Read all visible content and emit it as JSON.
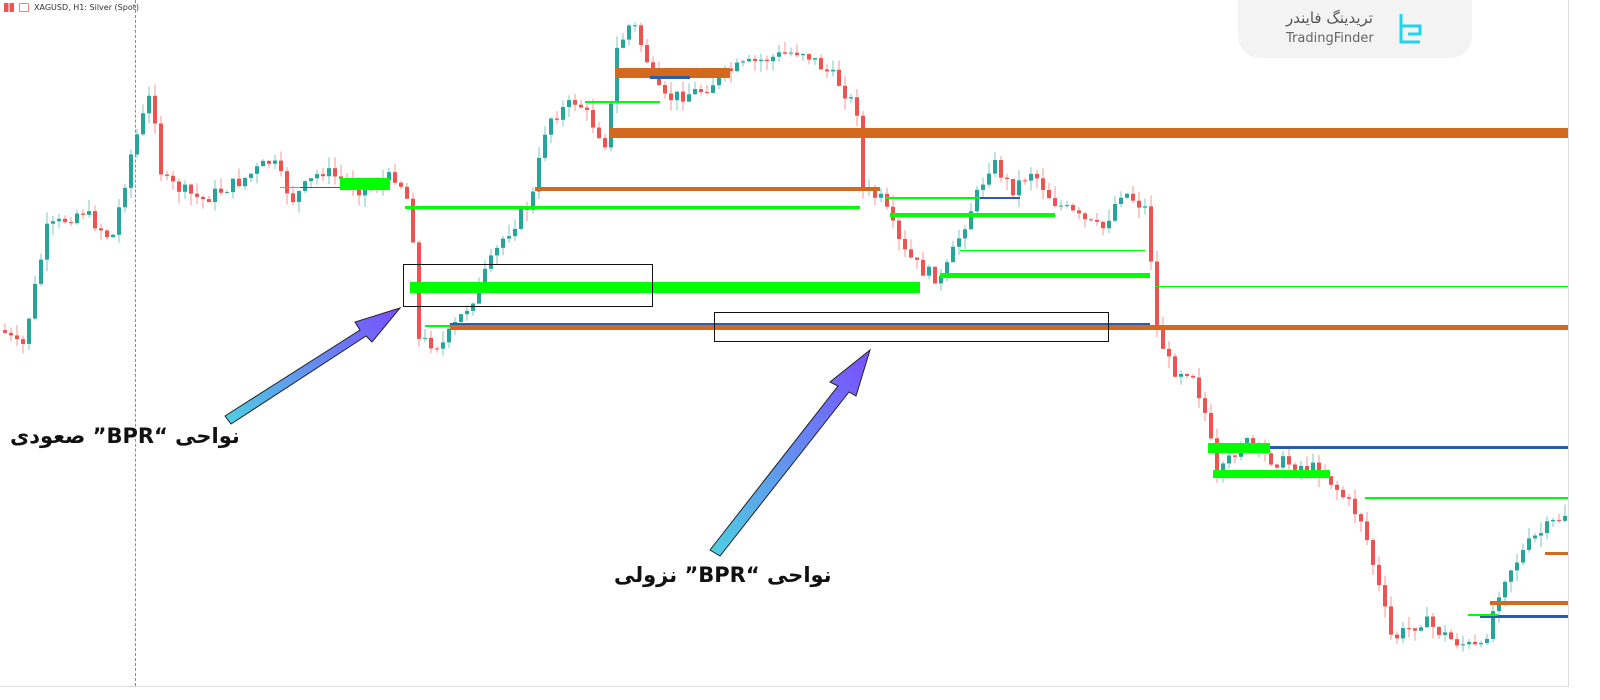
{
  "header": {
    "symbol": "XAGUSD",
    "timeframe": "H1",
    "title": "XAGUSD, H1:  Silver (Spot)"
  },
  "logo": {
    "text_fa": "تریدینگ فایندر",
    "text_en": "TradingFinder"
  },
  "annotations": {
    "bullish_label": "نواحی “BPR” صعودی",
    "bearish_label": "نواحی “BPR” نزولی"
  },
  "colors": {
    "bull_candle": "#26a69a",
    "bear_candle": "#ef5350",
    "bullish_zone": "#00ff00",
    "bearish_zone": "#d2691e",
    "mid_line": "#2a5db0",
    "arrow_start": "#4dd0e1",
    "arrow_end": "#7b4dff"
  },
  "chart_data": {
    "type": "candlestick",
    "title": "XAGUSD, H1:  Silver (Spot)",
    "grid": false,
    "zones": [
      "bullish BPR",
      "bearish BPR"
    ]
  }
}
